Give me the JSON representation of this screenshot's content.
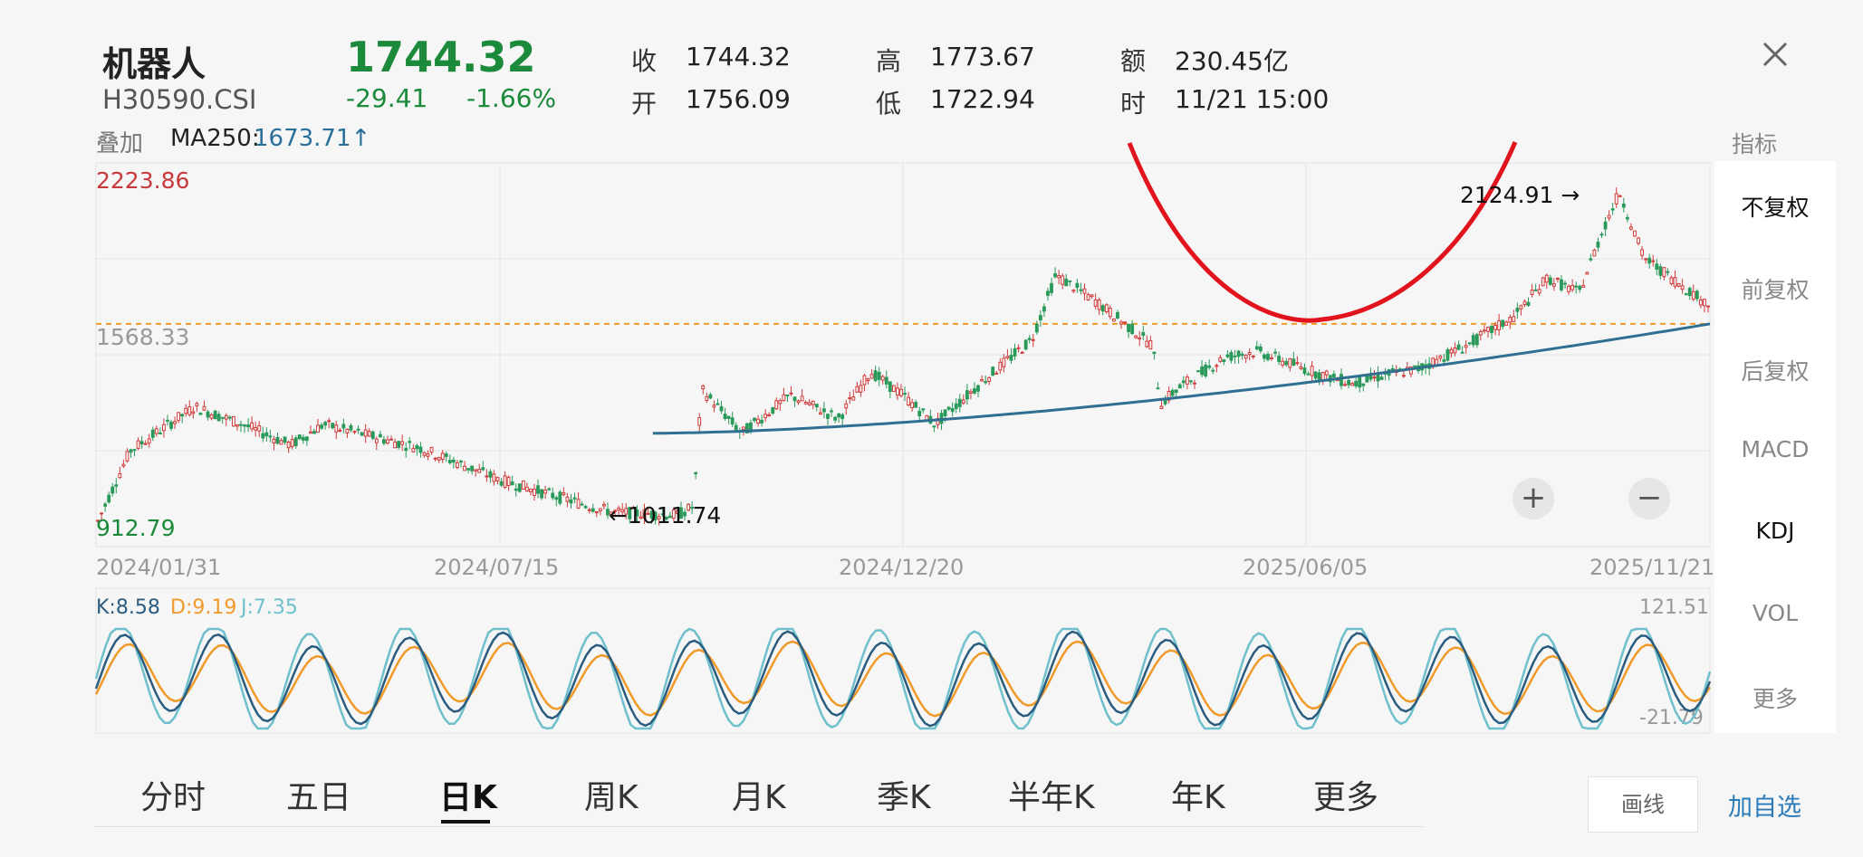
{
  "header": {
    "name": "机器人",
    "code": "H30590.CSI",
    "price": "1744.32",
    "change": "-29.41",
    "change_pct": "-1.66%"
  },
  "stats": {
    "close_label": "收",
    "close_value": "1744.32",
    "open_label": "开",
    "open_value": "1756.09",
    "high_label": "高",
    "high_value": "1773.67",
    "low_label": "低",
    "low_value": "1722.94",
    "amount_label": "额",
    "amount_value": "230.45亿",
    "time_label": "时",
    "time_value": "11/21 15:00"
  },
  "overlay": {
    "label": "叠加",
    "ma_name": "MA250:",
    "ma_value": "1673.71↑"
  },
  "right_panel": {
    "header": "指标",
    "items": [
      "不复权",
      "前复权",
      "后复权",
      "MACD",
      "KDJ",
      "VOL",
      "更多"
    ],
    "active": [
      "不复权",
      "KDJ"
    ]
  },
  "chart_data": {
    "type": "candlestick",
    "y_axis": {
      "top": "2223.86",
      "mid": "1568.33",
      "bottom": "912.79"
    },
    "x_ticks": [
      "2024/01/31",
      "2024/07/15",
      "2024/12/20",
      "2025/06/05",
      "2025/11/21"
    ],
    "annotations": {
      "high_marker": "2124.91 →",
      "low_marker": "←1011.74"
    },
    "dashed_level": 1673.71,
    "ma250_range": [
      1300,
      1673.71
    ],
    "colors": {
      "up": "#d03a3a",
      "down": "#2a9a5a",
      "ma250": "#2f6f91",
      "dashed": "#f09a2a",
      "arc": "#e1131c"
    }
  },
  "kdj": {
    "k_label": "K:8.58",
    "d_label": "D:9.19",
    "j_label": "J:7.35",
    "top": "121.51",
    "bottom": "-21.79",
    "colors": {
      "k": "#2a5c80",
      "d": "#f09a2a",
      "j": "#6fc0cc"
    }
  },
  "tabs": [
    "分时",
    "五日",
    "日K",
    "周K",
    "月K",
    "季K",
    "半年K",
    "年K",
    "更多"
  ],
  "active_tab": "日K",
  "buttons": {
    "draw": "画线",
    "add": "加自选",
    "zoom_in": "+",
    "zoom_out": "−"
  }
}
